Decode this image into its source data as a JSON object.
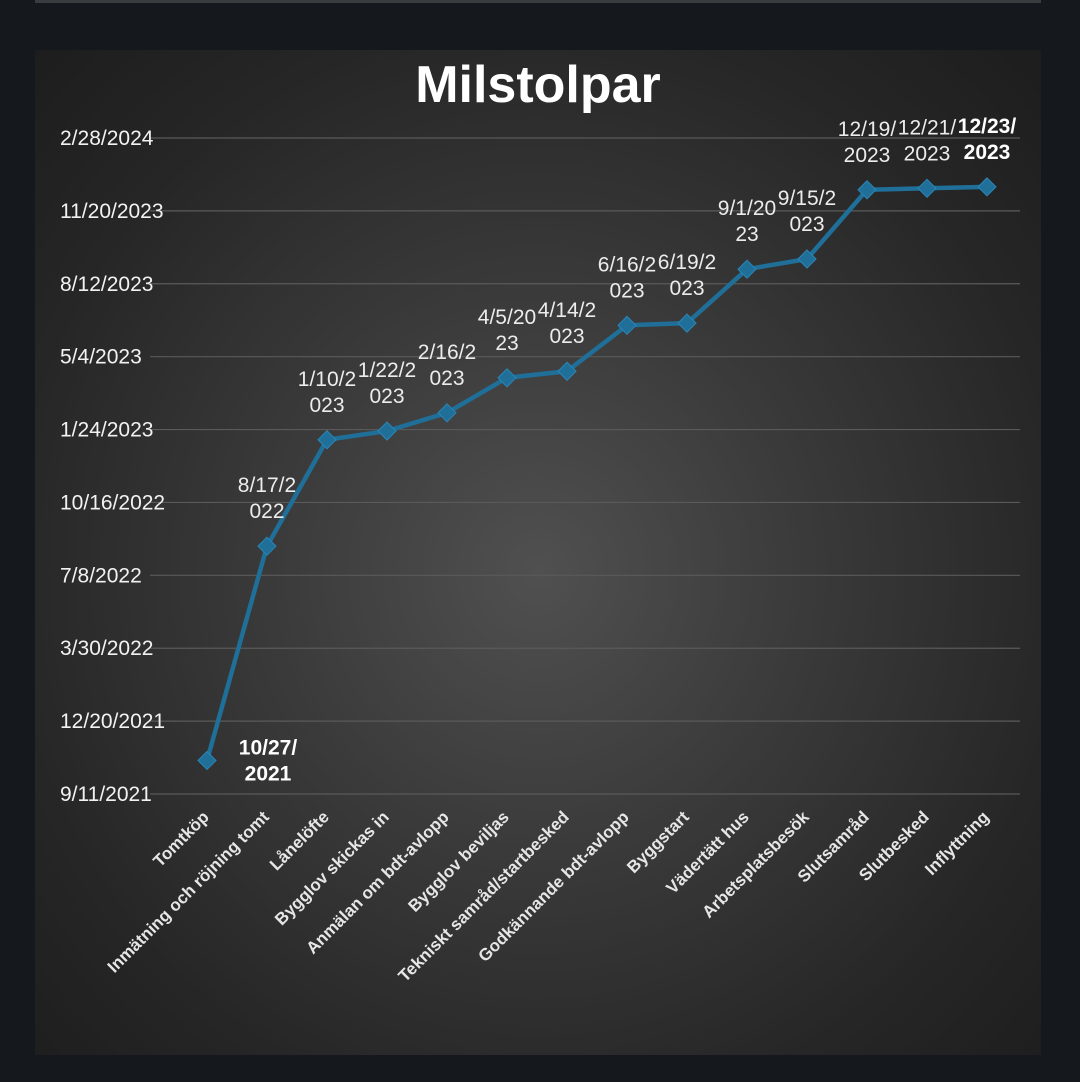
{
  "chart_data": {
    "type": "line",
    "title": "Milstolpar",
    "xlabel": "",
    "ylabel": "",
    "categories": [
      "Tomtköp",
      "Inmätning och röjning tomt",
      "Lånelöfte",
      "Bygglov skickas in",
      "Anmälan om bdt-avlopp",
      "Bygglov beviljas",
      "Tekniskt samråd/startbesked",
      "Godkännande bdt-avlopp",
      "Byggstart",
      "Vädertätt hus",
      "Arbetsplatsbesök",
      "Slutsamråd",
      "Slutbesked",
      "Inflyttning"
    ],
    "series": [
      {
        "values": [
          "2021-10-27",
          "2022-08-17",
          "2023-01-10",
          "2023-01-22",
          "2023-02-16",
          "2023-04-05",
          "2023-04-14",
          "2023-06-16",
          "2023-06-19",
          "2023-09-01",
          "2023-09-15",
          "2023-12-19",
          "2023-12-21",
          "2023-12-23"
        ]
      }
    ],
    "data_labels": [
      [
        "10/27/",
        "2021"
      ],
      [
        "8/17/2",
        "022"
      ],
      [
        "1/10/2",
        "023"
      ],
      [
        "1/22/2",
        "023"
      ],
      [
        "2/16/2",
        "023"
      ],
      [
        "4/5/20",
        "23"
      ],
      [
        "4/14/2",
        "023"
      ],
      [
        "6/16/2",
        "023"
      ],
      [
        "6/19/2",
        "023"
      ],
      [
        "9/1/20",
        "23"
      ],
      [
        "9/15/2",
        "023"
      ],
      [
        "12/19/",
        "2023"
      ],
      [
        "12/21/",
        "2023"
      ],
      [
        "12/23/",
        "2023"
      ]
    ],
    "bold_labels": [
      0,
      13
    ],
    "y_ticks": [
      "9/11/2021",
      "12/20/2021",
      "3/30/2022",
      "7/8/2022",
      "10/16/2022",
      "1/24/2023",
      "5/4/2023",
      "8/12/2023",
      "11/20/2023",
      "2/28/2024"
    ],
    "ylim": [
      "2021-09-11",
      "2024-02-28"
    ],
    "grid": true,
    "legend": "none",
    "colors": {
      "line": "#1f6f99",
      "marker": "#1f6f99",
      "gridline": "#5a5a5a",
      "background": "#333333",
      "text": "#f2f2f2"
    }
  }
}
